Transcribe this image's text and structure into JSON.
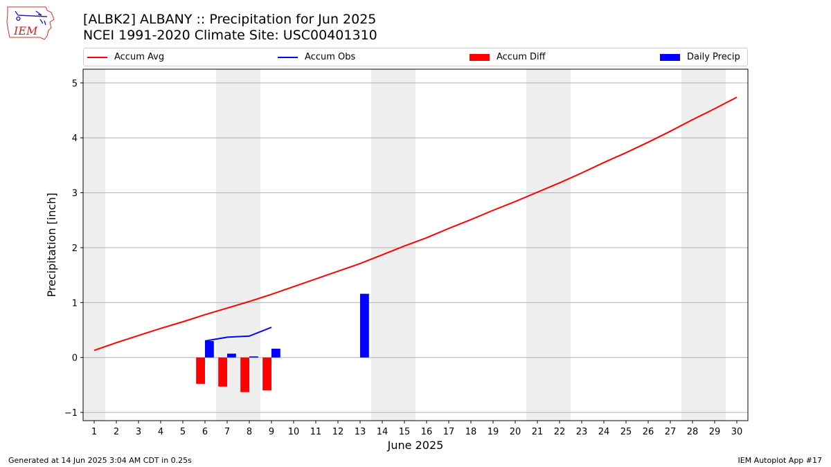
{
  "header": {
    "title_line1": "[ALBK2] ALBANY :: Precipitation for Jun 2025",
    "title_line2": "NCEI 1991-2020 Climate Site: USC00401310"
  },
  "logo": {
    "text": "IEM"
  },
  "legend": {
    "accum_avg": "Accum Avg",
    "accum_obs": "Accum Obs",
    "accum_diff": "Accum Diff",
    "daily_precip": "Daily Precip"
  },
  "footer": {
    "generated": "Generated at 14 Jun 2025 3:04 AM CDT in 0.25s",
    "app": "IEM Autoplot App #17"
  },
  "colors": {
    "avg": "#ff0000",
    "obs": "#0000ff",
    "diff": "#ff0000",
    "daily": "#0000ff",
    "weekend": "#eeeeee",
    "grid": "#b0b0b0"
  },
  "chart_data": {
    "type": "bar",
    "title": "[ALBK2] ALBANY :: Precipitation for Jun 2025",
    "xlabel": "June 2025",
    "ylabel": "Precipitation [inch]",
    "xlim": [
      0.5,
      30.5
    ],
    "ylim": [
      -1.15,
      5.25
    ],
    "yticks": [
      -1,
      0,
      1,
      2,
      3,
      4,
      5
    ],
    "xticks": [
      1,
      2,
      3,
      4,
      5,
      6,
      7,
      8,
      9,
      10,
      11,
      12,
      13,
      14,
      15,
      16,
      17,
      18,
      19,
      20,
      21,
      22,
      23,
      24,
      25,
      26,
      27,
      28,
      29,
      30
    ],
    "grid": "horizontal",
    "legend_position": "top",
    "weekend_spans": [
      [
        0.5,
        1.5
      ],
      [
        6.5,
        8.5
      ],
      [
        13.5,
        15.5
      ],
      [
        20.5,
        22.5
      ],
      [
        27.5,
        29.5
      ]
    ],
    "series": [
      {
        "name": "Accum Avg",
        "type": "line",
        "x": [
          1,
          2,
          3,
          4,
          5,
          6,
          7,
          8,
          9,
          10,
          11,
          12,
          13,
          14,
          15,
          16,
          17,
          18,
          19,
          20,
          21,
          22,
          23,
          24,
          25,
          26,
          27,
          28,
          29,
          30
        ],
        "values": [
          0.13,
          0.27,
          0.4,
          0.53,
          0.65,
          0.78,
          0.9,
          1.02,
          1.15,
          1.29,
          1.43,
          1.57,
          1.71,
          1.87,
          2.03,
          2.18,
          2.35,
          2.51,
          2.68,
          2.84,
          3.01,
          3.18,
          3.36,
          3.55,
          3.73,
          3.92,
          4.12,
          4.33,
          4.53,
          4.74
        ]
      },
      {
        "name": "Accum Obs",
        "type": "line",
        "x": [
          6,
          7,
          8,
          9
        ],
        "values": [
          0.3,
          0.37,
          0.39,
          0.55
        ]
      },
      {
        "name": "Accum Diff",
        "type": "bar",
        "x": [
          6,
          7,
          8,
          9
        ],
        "values": [
          -0.48,
          -0.53,
          -0.63,
          -0.6
        ]
      },
      {
        "name": "Daily Precip",
        "type": "bar",
        "x": [
          6,
          7,
          8,
          9,
          13
        ],
        "values": [
          0.3,
          0.07,
          0.02,
          0.16,
          1.16
        ]
      }
    ]
  }
}
